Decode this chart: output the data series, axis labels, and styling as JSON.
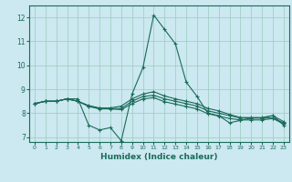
{
  "xlabel": "Humidex (Indice chaleur)",
  "background_color": "#cce8f0",
  "grid_color": "#99ccbb",
  "line_color": "#1a6b5a",
  "xlim": [
    -0.5,
    23.5
  ],
  "ylim": [
    6.8,
    12.5
  ],
  "xticks": [
    0,
    1,
    2,
    3,
    4,
    5,
    6,
    7,
    8,
    9,
    10,
    11,
    12,
    13,
    14,
    15,
    16,
    17,
    18,
    19,
    20,
    21,
    22,
    23
  ],
  "yticks": [
    7,
    8,
    9,
    10,
    11,
    12
  ],
  "hours": [
    0,
    1,
    2,
    3,
    4,
    5,
    6,
    7,
    8,
    9,
    10,
    11,
    12,
    13,
    14,
    15,
    16,
    17,
    18,
    19,
    20,
    21,
    22,
    23
  ],
  "line1": [
    8.4,
    8.5,
    8.5,
    8.6,
    8.6,
    7.5,
    7.3,
    7.4,
    6.85,
    8.8,
    9.9,
    12.1,
    11.5,
    10.9,
    9.3,
    8.7,
    8.0,
    7.9,
    7.6,
    7.7,
    7.8,
    7.8,
    7.9,
    7.5
  ],
  "line2": [
    8.4,
    8.5,
    8.5,
    8.6,
    8.5,
    8.3,
    8.2,
    8.2,
    8.2,
    8.5,
    8.7,
    8.75,
    8.6,
    8.5,
    8.4,
    8.3,
    8.1,
    8.0,
    7.9,
    7.8,
    7.8,
    7.8,
    7.8,
    7.6
  ],
  "line3": [
    8.4,
    8.5,
    8.5,
    8.6,
    8.5,
    8.32,
    8.22,
    8.22,
    8.3,
    8.6,
    8.8,
    8.9,
    8.72,
    8.6,
    8.5,
    8.4,
    8.2,
    8.1,
    7.95,
    7.82,
    7.82,
    7.82,
    7.9,
    7.65
  ],
  "line4": [
    8.4,
    8.5,
    8.5,
    8.6,
    8.5,
    8.28,
    8.18,
    8.18,
    8.15,
    8.4,
    8.6,
    8.65,
    8.48,
    8.38,
    8.28,
    8.18,
    7.98,
    7.88,
    7.78,
    7.72,
    7.72,
    7.72,
    7.78,
    7.55
  ]
}
